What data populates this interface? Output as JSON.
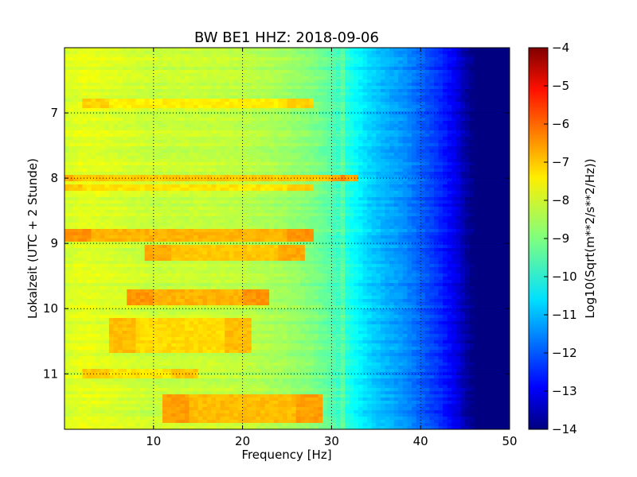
{
  "chart_data": {
    "type": "heatmap",
    "title": "BW BE1 HHZ: 2018-09-06",
    "xlabel": "Frequency [Hz]",
    "ylabel": "Lokalzeit (UTC + 2 Stunde)",
    "xlim": [
      0,
      50
    ],
    "ylim": [
      11.85,
      6.0
    ],
    "x_ticks": [
      10,
      20,
      30,
      40,
      50
    ],
    "y_ticks": [
      7,
      8,
      9,
      10,
      11
    ],
    "grid": true,
    "grid_style": "dotted",
    "colormap": "jet",
    "colorbar": {
      "label": "Log10(Sqrt(m**2/s**2/Hz))",
      "range": [
        -14,
        -4
      ],
      "ticks": [
        -4,
        -5,
        -6,
        -7,
        -8,
        -9,
        -10,
        -11,
        -12,
        -13,
        -14
      ]
    },
    "frequency_profile": {
      "frequencies_hz": [
        0,
        2,
        5,
        10,
        15,
        20,
        25,
        28,
        30,
        32,
        34,
        36,
        38,
        40,
        42,
        44,
        45,
        46,
        50
      ],
      "log10_amplitude": [
        -8.2,
        -8.0,
        -8.1,
        -8.3,
        -8.3,
        -8.4,
        -8.7,
        -9.0,
        -9.4,
        -10.0,
        -10.6,
        -11.0,
        -11.3,
        -11.8,
        -12.3,
        -13.0,
        -13.6,
        -14.0,
        -14.0
      ]
    },
    "high_noise_periods": [
      {
        "start_hour": 6.8,
        "end_hour": 6.95,
        "freq_range_hz": [
          5,
          25
        ],
        "peak_log10": -7.6
      },
      {
        "start_hour": 7.95,
        "end_hour": 8.05,
        "freq_range_hz": [
          1,
          30
        ],
        "peak_log10": -7.2
      },
      {
        "start_hour": 8.12,
        "end_hour": 8.2,
        "freq_range_hz": [
          2,
          25
        ],
        "peak_log10": -7.5
      },
      {
        "start_hour": 8.8,
        "end_hour": 8.95,
        "freq_range_hz": [
          3,
          25
        ],
        "peak_log10": -7.0
      },
      {
        "start_hour": 9.0,
        "end_hour": 9.25,
        "freq_range_hz": [
          12,
          24
        ],
        "peak_log10": -7.2
      },
      {
        "start_hour": 9.7,
        "end_hour": 9.95,
        "freq_range_hz": [
          10,
          20
        ],
        "peak_log10": -7.0
      },
      {
        "start_hour": 10.15,
        "end_hour": 10.7,
        "freq_range_hz": [
          8,
          18
        ],
        "peak_log10": -7.4
      },
      {
        "start_hour": 10.9,
        "end_hour": 11.05,
        "freq_range_hz": [
          5,
          12
        ],
        "peak_log10": -7.5
      },
      {
        "start_hour": 11.3,
        "end_hour": 11.75,
        "freq_range_hz": [
          14,
          26
        ],
        "peak_log10": -7.1
      }
    ],
    "narrow_lines": [
      {
        "name": "31 Hz",
        "freq_hz": 31.2
      }
    ]
  }
}
